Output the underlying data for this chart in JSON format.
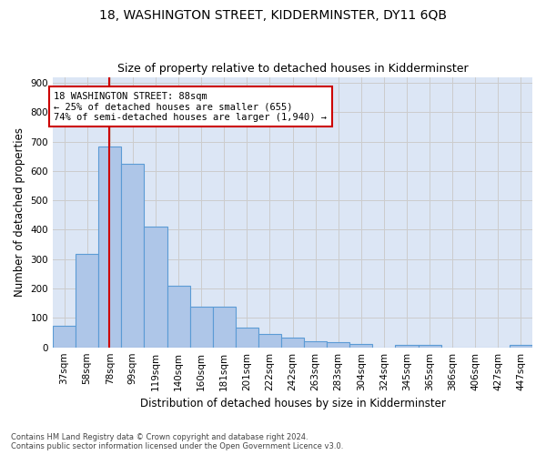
{
  "title": "18, WASHINGTON STREET, KIDDERMINSTER, DY11 6QB",
  "subtitle": "Size of property relative to detached houses in Kidderminster",
  "xlabel": "Distribution of detached houses by size in Kidderminster",
  "ylabel": "Number of detached properties",
  "footnote": "Contains HM Land Registry data © Crown copyright and database right 2024.\nContains public sector information licensed under the Open Government Licence v3.0.",
  "categories": [
    "37sqm",
    "58sqm",
    "78sqm",
    "99sqm",
    "119sqm",
    "140sqm",
    "160sqm",
    "181sqm",
    "201sqm",
    "222sqm",
    "242sqm",
    "263sqm",
    "283sqm",
    "304sqm",
    "324sqm",
    "345sqm",
    "365sqm",
    "386sqm",
    "406sqm",
    "427sqm",
    "447sqm"
  ],
  "values": [
    72,
    318,
    683,
    625,
    410,
    210,
    137,
    137,
    68,
    46,
    33,
    22,
    18,
    11,
    0,
    7,
    7,
    0,
    0,
    0,
    7
  ],
  "bar_color": "#aec6e8",
  "bar_edge_color": "#5b9bd5",
  "bar_edge_width": 0.8,
  "vline_color": "#cc0000",
  "annotation_text": "18 WASHINGTON STREET: 88sqm\n← 25% of detached houses are smaller (655)\n74% of semi-detached houses are larger (1,940) →",
  "annotation_box_color": "#ffffff",
  "annotation_box_edge": "#cc0000",
  "ylim": [
    0,
    920
  ],
  "yticks": [
    0,
    100,
    200,
    300,
    400,
    500,
    600,
    700,
    800,
    900
  ],
  "grid_color": "#cccccc",
  "bg_color": "#dce6f5",
  "title_fontsize": 10,
  "subtitle_fontsize": 9,
  "label_fontsize": 8.5,
  "tick_fontsize": 7.5,
  "annot_fontsize": 7.5
}
